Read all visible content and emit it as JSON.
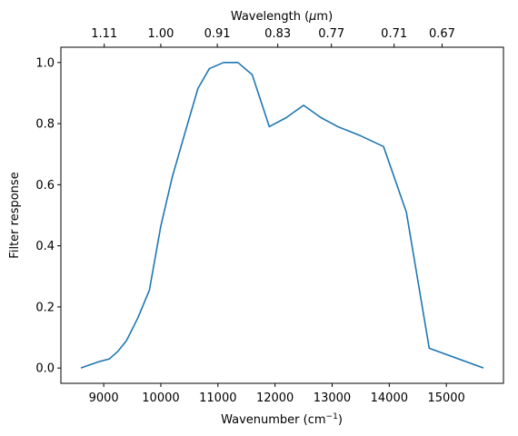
{
  "chart_data": {
    "type": "line",
    "title": "",
    "xlabel": "Wavenumber (cm",
    "xlabel_sup": "−1",
    "xlabel_close": ")",
    "ylabel": "Filter response",
    "top_xlabel": "Wavelength (",
    "top_xlabel_mu": "μ",
    "top_xlabel_unit": "m)",
    "xlim": [
      8250,
      16000
    ],
    "ylim": [
      -0.05,
      1.05
    ],
    "grid": false,
    "line_color": "#1f77b4",
    "x_ticks": [
      9000,
      10000,
      11000,
      12000,
      13000,
      14000,
      15000
    ],
    "x_tick_labels": [
      "9000",
      "10000",
      "11000",
      "12000",
      "13000",
      "14000",
      "15000"
    ],
    "y_ticks": [
      0.0,
      0.2,
      0.4,
      0.6,
      0.8,
      1.0
    ],
    "y_tick_labels": [
      "0.0",
      "0.2",
      "0.4",
      "0.6",
      "0.8",
      "1.0"
    ],
    "top_ticks": [
      9009,
      10000,
      10989,
      12048,
      12987,
      14085,
      14925
    ],
    "top_tick_labels": [
      "1.11",
      "1.00",
      "0.91",
      "0.83",
      "0.77",
      "0.71",
      "0.67"
    ],
    "x": [
      8600,
      8900,
      9100,
      9250,
      9400,
      9600,
      9800,
      10000,
      10200,
      10400,
      10650,
      10850,
      11100,
      11350,
      11600,
      11900,
      12200,
      12500,
      12800,
      13100,
      13500,
      13900,
      14300,
      14700,
      15650
    ],
    "y": [
      0.0,
      0.02,
      0.03,
      0.055,
      0.09,
      0.165,
      0.255,
      0.465,
      0.625,
      0.755,
      0.915,
      0.98,
      1.0,
      1.0,
      0.96,
      0.79,
      0.82,
      0.86,
      0.82,
      0.79,
      0.76,
      0.725,
      0.51,
      0.065,
      0.0
    ]
  }
}
